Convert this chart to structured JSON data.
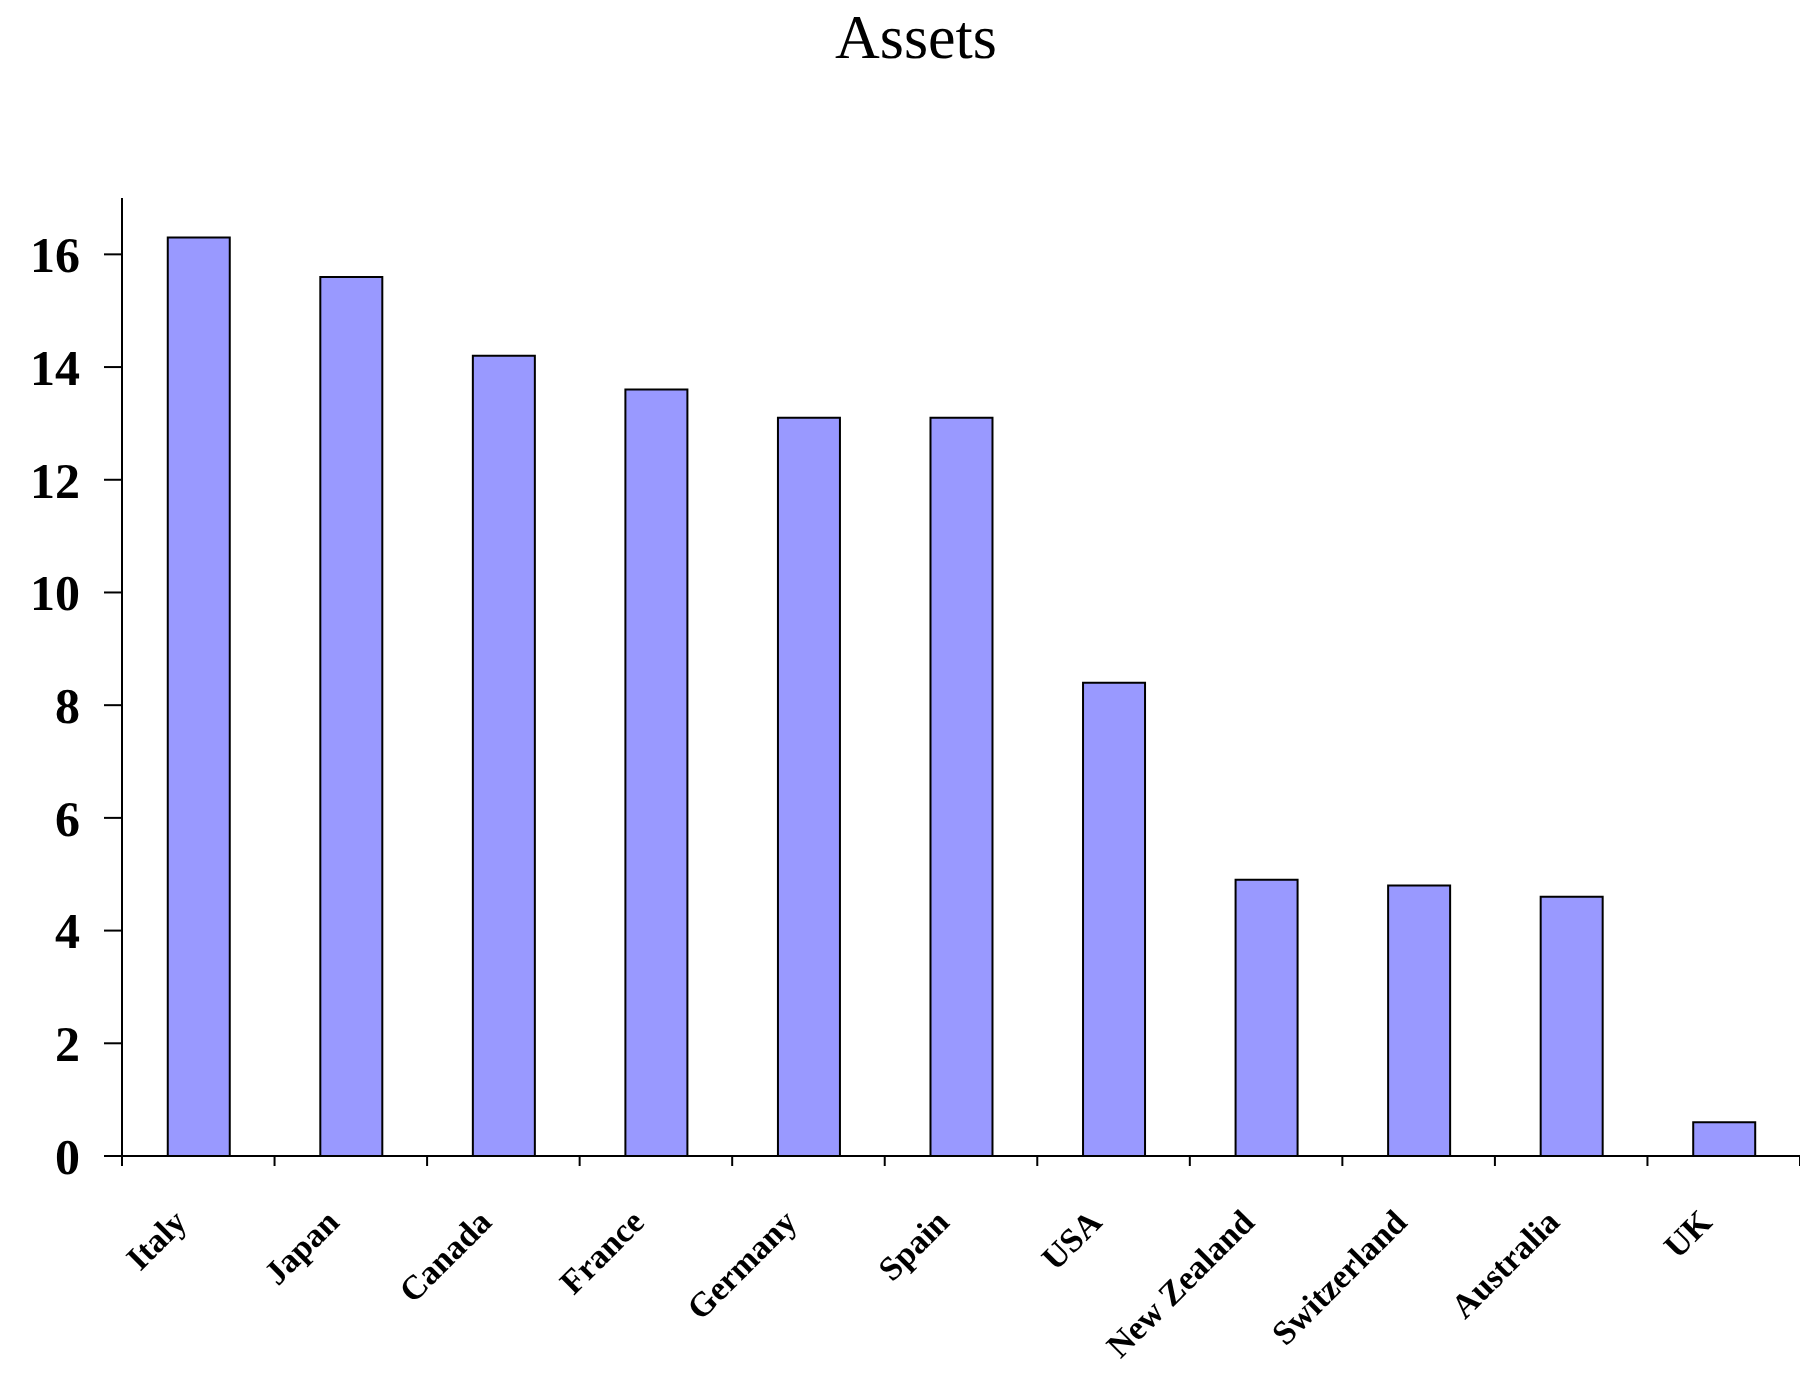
{
  "chart_data": {
    "type": "bar",
    "title": "Assets",
    "categories": [
      "Italy",
      "Japan",
      "Canada",
      "France",
      "Germany",
      "Spain",
      "USA",
      "New Zealand",
      "Switzerland",
      "Australia",
      "UK"
    ],
    "values": [
      16.3,
      15.6,
      14.2,
      13.6,
      13.1,
      13.1,
      8.4,
      4.9,
      4.8,
      4.6,
      0.6
    ],
    "color": "#9999ff",
    "ylim": [
      0,
      17
    ],
    "yticks": [
      0,
      2,
      4,
      6,
      8,
      10,
      12,
      14,
      16
    ]
  }
}
